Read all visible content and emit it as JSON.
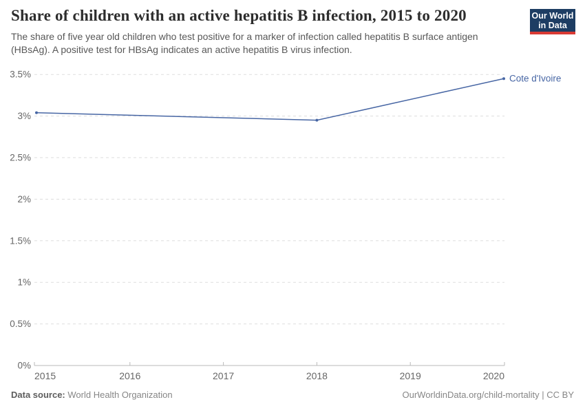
{
  "header": {
    "title": "Share of children with an active hepatitis B infection, 2015 to 2020",
    "subtitle": "The share of five year old children who test positive for a marker of infection called hepatitis B surface antigen (HBsAg). A positive test for HBsAg indicates an active hepatitis B virus infection."
  },
  "logo": {
    "line1": "Our World",
    "line2": "in Data",
    "bg_color": "#1d3d63",
    "accent_color": "#d93a34"
  },
  "chart_data": {
    "type": "line",
    "title": "Share of children with an active hepatitis B infection, 2015 to 2020",
    "x": [
      2015,
      2018,
      2020
    ],
    "series": [
      {
        "name": "Cote d'Ivoire",
        "values": [
          3.04,
          2.95,
          3.45
        ],
        "color": "#4766a4"
      }
    ],
    "x_ticks": [
      2015,
      2016,
      2017,
      2018,
      2019,
      2020
    ],
    "y_ticks": [
      {
        "value": 0,
        "label": "0%"
      },
      {
        "value": 0.5,
        "label": "0.5%"
      },
      {
        "value": 1,
        "label": "1%"
      },
      {
        "value": 1.5,
        "label": "1.5%"
      },
      {
        "value": 2,
        "label": "2%"
      },
      {
        "value": 2.5,
        "label": "2.5%"
      },
      {
        "value": 3,
        "label": "3%"
      },
      {
        "value": 3.5,
        "label": "3.5%"
      }
    ],
    "xlim": [
      2015,
      2020
    ],
    "ylim": [
      0,
      3.5
    ],
    "grid": "horizontal-dashed",
    "legend_position": "line-end-label",
    "colors": {
      "line": "#4766a4",
      "grid": "#dddddd",
      "axis": "#bababa",
      "tick_text": "#666666"
    }
  },
  "footer": {
    "source_label": "Data source:",
    "source_value": "World Health Organization",
    "right": "OurWorldinData.org/child-mortality | CC BY"
  }
}
